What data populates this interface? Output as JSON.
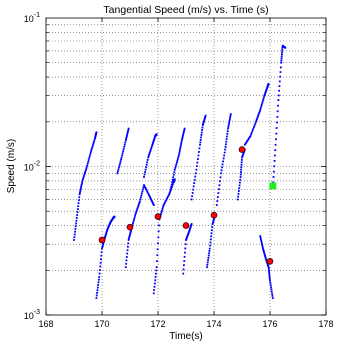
{
  "chart_data": {
    "type": "scatter",
    "title": "Tangential Speed (m/s) vs. Time (s)",
    "xlabel": "Time(s)",
    "ylabel": "Speed (m/s)",
    "xlim": [
      168,
      178
    ],
    "ylim": [
      0.001,
      0.1
    ],
    "yscale": "log",
    "grid": true,
    "grid_style": "dotted",
    "x_ticks": [
      168,
      170,
      172,
      174,
      176,
      178
    ],
    "x_tick_labels": [
      "168",
      "170",
      "172",
      "174",
      "176",
      "178"
    ],
    "y_ticks": [
      0.001,
      0.01,
      0.1
    ],
    "y_tick_labels": [
      {
        "base": "10",
        "exp": "-3"
      },
      {
        "base": "10",
        "exp": "-2"
      },
      {
        "base": "10",
        "exp": "-1"
      }
    ],
    "colors": {
      "trace": "#0000ff",
      "event": "#ff0000",
      "event_edge": "#000000",
      "marker": "#22ee22"
    },
    "series": [
      {
        "marker": "dot",
        "color": "#0000ff",
        "segments": [
          {
            "x": [
              169.0,
              169.1,
              169.2,
              169.3,
              169.45,
              169.6,
              169.75,
              169.8
            ],
            "y": [
              0.0032,
              0.0045,
              0.0065,
              0.008,
              0.0098,
              0.0125,
              0.0155,
              0.017
            ]
          },
          {
            "x": [
              169.8,
              169.9,
              170.0,
              170.1,
              170.2,
              170.3,
              170.4,
              170.45
            ],
            "y": [
              0.0013,
              0.0018,
              0.0028,
              0.0033,
              0.0038,
              0.0042,
              0.0045,
              0.0046
            ]
          },
          {
            "x": [
              170.55,
              170.7,
              170.85,
              170.95
            ],
            "y": [
              0.009,
              0.0115,
              0.015,
              0.018
            ]
          },
          {
            "x": [
              170.85,
              170.95,
              171.05,
              171.2,
              171.35,
              171.5,
              171.7,
              171.85
            ],
            "y": [
              0.0021,
              0.0032,
              0.0038,
              0.0048,
              0.0058,
              0.0075,
              0.0063,
              0.0055
            ]
          },
          {
            "x": [
              171.5,
              171.65,
              171.8,
              171.9,
              171.95
            ],
            "y": [
              0.0085,
              0.0115,
              0.014,
              0.016,
              0.0165
            ]
          },
          {
            "x": [
              171.85,
              171.95,
              172.05,
              172.2,
              172.4,
              172.55,
              172.6
            ],
            "y": [
              0.0014,
              0.0021,
              0.0044,
              0.0055,
              0.0065,
              0.0078,
              0.0082
            ]
          },
          {
            "x": [
              172.45,
              172.6,
              172.75,
              172.85,
              172.95
            ],
            "y": [
              0.007,
              0.0095,
              0.012,
              0.015,
              0.018
            ]
          },
          {
            "x": [
              172.9,
              173.0,
              173.1,
              173.2
            ],
            "y": [
              0.0019,
              0.0032,
              0.0036,
              0.0041
            ]
          },
          {
            "x": [
              173.2,
              173.35,
              173.5,
              173.6,
              173.7
            ],
            "y": [
              0.006,
              0.009,
              0.014,
              0.019,
              0.022
            ]
          },
          {
            "x": [
              173.75,
              173.85,
              173.95,
              174.05
            ],
            "y": [
              0.0021,
              0.0028,
              0.0041,
              0.0048
            ]
          },
          {
            "x": [
              174.1,
              174.25,
              174.4,
              174.5,
              174.6
            ],
            "y": [
              0.0055,
              0.009,
              0.013,
              0.018,
              0.0225
            ]
          },
          {
            "x": [
              174.85,
              174.95,
              175.0,
              175.1
            ],
            "y": [
              0.006,
              0.0085,
              0.0115,
              0.013
            ]
          },
          {
            "x": [
              175.1,
              175.3,
              175.5,
              175.65,
              175.8,
              175.9,
              175.95
            ],
            "y": [
              0.014,
              0.016,
              0.02,
              0.024,
              0.03,
              0.034,
              0.036
            ]
          },
          {
            "x": [
              175.65,
              175.75,
              175.85,
              175.95,
              176.0,
              176.1
            ],
            "y": [
              0.0034,
              0.0028,
              0.0024,
              0.0021,
              0.0017,
              0.0013
            ]
          },
          {
            "x": [
              176.1,
              176.2,
              176.3,
              176.4,
              176.45,
              176.55
            ],
            "y": [
              0.0072,
              0.014,
              0.028,
              0.05,
              0.065,
              0.063
            ]
          }
        ]
      },
      {
        "marker": "circle",
        "color": "#ff0000",
        "x": [
          170.0,
          171.0,
          172.0,
          173.0,
          174.0,
          175.0,
          176.0
        ],
        "y": [
          0.0032,
          0.0039,
          0.0046,
          0.004,
          0.0047,
          0.013,
          0.0023
        ]
      },
      {
        "marker": "square",
        "color": "#22ee22",
        "x": [
          176.1
        ],
        "y": [
          0.0074
        ]
      }
    ]
  }
}
